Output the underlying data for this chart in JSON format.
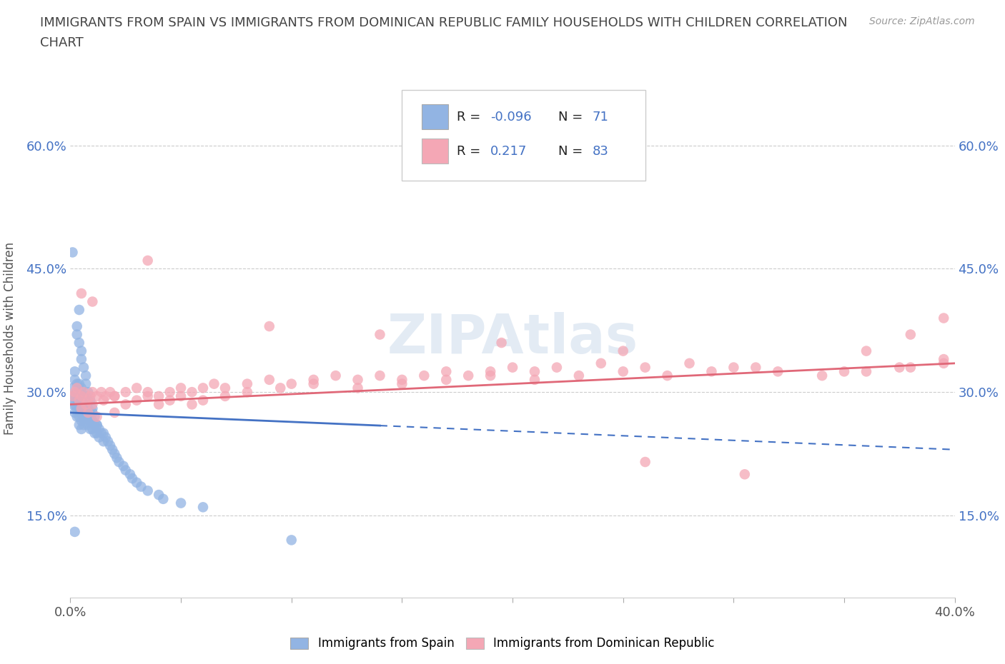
{
  "title_line1": "IMMIGRANTS FROM SPAIN VS IMMIGRANTS FROM DOMINICAN REPUBLIC FAMILY HOUSEHOLDS WITH CHILDREN CORRELATION",
  "title_line2": "CHART",
  "source": "Source: ZipAtlas.com",
  "ylabel": "Family Households with Children",
  "ytick_labels": [
    "15.0%",
    "30.0%",
    "45.0%",
    "60.0%"
  ],
  "ytick_values": [
    0.15,
    0.3,
    0.45,
    0.6
  ],
  "xlim": [
    0.0,
    0.4
  ],
  "ylim": [
    0.05,
    0.68
  ],
  "xticks": [
    0.0,
    0.05,
    0.1,
    0.15,
    0.2,
    0.25,
    0.3,
    0.35,
    0.4
  ],
  "legend_label1": "Immigrants from Spain",
  "legend_label2": "Immigrants from Dominican Republic",
  "R1": -0.096,
  "N1": 71,
  "R2": 0.217,
  "N2": 83,
  "color1": "#92b4e3",
  "color2": "#f4a7b5",
  "line_color1": "#4472c4",
  "line_color2": "#e06878",
  "title_color": "#444444",
  "source_color": "#999999",
  "blue_line_solid_end": 0.14,
  "blue_line_start_y": 0.275,
  "blue_line_end_y": 0.23,
  "pink_line_start_y": 0.285,
  "pink_line_end_y": 0.335,
  "scatter1_x": [
    0.001,
    0.001,
    0.001,
    0.002,
    0.002,
    0.002,
    0.002,
    0.002,
    0.003,
    0.003,
    0.003,
    0.003,
    0.003,
    0.004,
    0.004,
    0.004,
    0.004,
    0.004,
    0.004,
    0.005,
    0.005,
    0.005,
    0.005,
    0.005,
    0.005,
    0.006,
    0.006,
    0.006,
    0.006,
    0.007,
    0.007,
    0.007,
    0.007,
    0.008,
    0.008,
    0.008,
    0.008,
    0.009,
    0.009,
    0.009,
    0.01,
    0.01,
    0.01,
    0.011,
    0.011,
    0.012,
    0.012,
    0.013,
    0.013,
    0.014,
    0.015,
    0.015,
    0.016,
    0.017,
    0.018,
    0.019,
    0.02,
    0.021,
    0.022,
    0.024,
    0.025,
    0.027,
    0.028,
    0.03,
    0.032,
    0.035,
    0.04,
    0.042,
    0.05,
    0.06,
    0.1
  ],
  "scatter1_y": [
    0.285,
    0.295,
    0.305,
    0.275,
    0.285,
    0.295,
    0.315,
    0.325,
    0.27,
    0.28,
    0.29,
    0.3,
    0.31,
    0.26,
    0.27,
    0.28,
    0.29,
    0.3,
    0.31,
    0.255,
    0.265,
    0.275,
    0.285,
    0.295,
    0.305,
    0.26,
    0.27,
    0.28,
    0.29,
    0.265,
    0.275,
    0.285,
    0.295,
    0.26,
    0.27,
    0.28,
    0.29,
    0.255,
    0.265,
    0.275,
    0.255,
    0.265,
    0.275,
    0.25,
    0.26,
    0.25,
    0.26,
    0.245,
    0.255,
    0.25,
    0.24,
    0.25,
    0.245,
    0.24,
    0.235,
    0.23,
    0.225,
    0.22,
    0.215,
    0.21,
    0.205,
    0.2,
    0.195,
    0.19,
    0.185,
    0.18,
    0.175,
    0.17,
    0.165,
    0.16,
    0.12
  ],
  "scatter1_y_extra": [
    0.47,
    0.4,
    0.38,
    0.37,
    0.36,
    0.35,
    0.34,
    0.33,
    0.32,
    0.31,
    0.3,
    0.29,
    0.28,
    0.27,
    0.26,
    0.13
  ],
  "scatter1_x_extra": [
    0.001,
    0.004,
    0.003,
    0.003,
    0.004,
    0.005,
    0.005,
    0.006,
    0.007,
    0.007,
    0.008,
    0.009,
    0.01,
    0.011,
    0.012,
    0.002
  ],
  "scatter2_x": [
    0.001,
    0.002,
    0.003,
    0.004,
    0.005,
    0.006,
    0.007,
    0.008,
    0.009,
    0.01,
    0.012,
    0.014,
    0.016,
    0.018,
    0.02,
    0.025,
    0.03,
    0.035,
    0.04,
    0.045,
    0.05,
    0.055,
    0.06,
    0.065,
    0.07,
    0.08,
    0.09,
    0.1,
    0.11,
    0.12,
    0.13,
    0.14,
    0.15,
    0.16,
    0.17,
    0.18,
    0.19,
    0.2,
    0.21,
    0.22,
    0.24,
    0.26,
    0.28,
    0.3,
    0.32,
    0.34,
    0.36,
    0.38,
    0.01,
    0.015,
    0.02,
    0.025,
    0.03,
    0.035,
    0.04,
    0.045,
    0.05,
    0.055,
    0.06,
    0.07,
    0.08,
    0.095,
    0.11,
    0.13,
    0.15,
    0.17,
    0.19,
    0.21,
    0.23,
    0.25,
    0.27,
    0.29,
    0.31,
    0.35,
    0.375,
    0.395,
    0.395,
    0.38,
    0.36,
    0.005,
    0.008,
    0.012,
    0.02
  ],
  "scatter2_y": [
    0.295,
    0.3,
    0.305,
    0.29,
    0.295,
    0.3,
    0.285,
    0.29,
    0.295,
    0.3,
    0.295,
    0.3,
    0.295,
    0.3,
    0.295,
    0.3,
    0.305,
    0.3,
    0.295,
    0.3,
    0.305,
    0.3,
    0.305,
    0.31,
    0.305,
    0.31,
    0.315,
    0.31,
    0.315,
    0.32,
    0.315,
    0.32,
    0.315,
    0.32,
    0.325,
    0.32,
    0.325,
    0.33,
    0.325,
    0.33,
    0.335,
    0.33,
    0.335,
    0.33,
    0.325,
    0.32,
    0.325,
    0.33,
    0.285,
    0.29,
    0.295,
    0.285,
    0.29,
    0.295,
    0.285,
    0.29,
    0.295,
    0.285,
    0.29,
    0.295,
    0.3,
    0.305,
    0.31,
    0.305,
    0.31,
    0.315,
    0.32,
    0.315,
    0.32,
    0.325,
    0.32,
    0.325,
    0.33,
    0.325,
    0.33,
    0.335,
    0.39,
    0.37,
    0.35,
    0.28,
    0.275,
    0.27,
    0.275
  ],
  "scatter2_y_extra": [
    0.46,
    0.42,
    0.41,
    0.38,
    0.37,
    0.36,
    0.35,
    0.34,
    0.215,
    0.2
  ],
  "scatter2_x_extra": [
    0.035,
    0.005,
    0.01,
    0.09,
    0.14,
    0.195,
    0.25,
    0.395,
    0.26,
    0.305
  ]
}
